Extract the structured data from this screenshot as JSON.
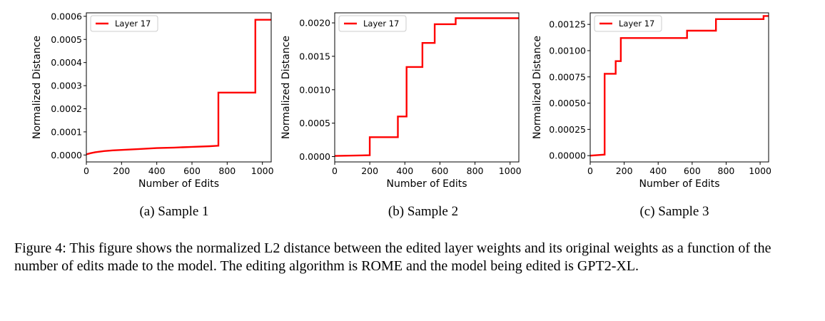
{
  "chart_data": [
    {
      "type": "line",
      "subcaption": "(a) Sample 1",
      "xlabel": "Number of Edits",
      "ylabel": "Normalized Distance",
      "xlim": [
        0,
        1050
      ],
      "ylim": [
        -3e-05,
        0.000615
      ],
      "xticks": [
        0,
        200,
        400,
        600,
        800,
        1000
      ],
      "xtick_labels": [
        "0",
        "200",
        "400",
        "600",
        "800",
        "1000"
      ],
      "yticks": [
        0,
        0.0001,
        0.0002,
        0.0003,
        0.0004,
        0.0005,
        0.0006
      ],
      "ytick_labels": [
        "0.0000",
        "0.0001",
        "0.0002",
        "0.0003",
        "0.0004",
        "0.0005",
        "0.0006"
      ],
      "legend_position": "top-left",
      "grid": false,
      "series": [
        {
          "name": "Layer 17",
          "color": "#ff0000",
          "x": [
            0,
            25,
            50,
            100,
            150,
            200,
            300,
            400,
            500,
            600,
            700,
            750,
            750,
            960,
            960,
            1050
          ],
          "y": [
            3e-06,
            8e-06,
            1.2e-05,
            1.7e-05,
            2e-05,
            2.2e-05,
            2.6e-05,
            3e-05,
            3.2e-05,
            3.5e-05,
            3.8e-05,
            4e-05,
            0.00027,
            0.00027,
            0.000585,
            0.000585
          ]
        }
      ]
    },
    {
      "type": "line",
      "subcaption": "(b) Sample 2",
      "xlabel": "Number of Edits",
      "ylabel": "Normalized Distance",
      "xlim": [
        0,
        1050
      ],
      "ylim": [
        -8e-05,
        0.00215
      ],
      "xticks": [
        0,
        200,
        400,
        600,
        800,
        1000
      ],
      "xtick_labels": [
        "0",
        "200",
        "400",
        "600",
        "800",
        "1000"
      ],
      "yticks": [
        0,
        0.0005,
        0.001,
        0.0015,
        0.002
      ],
      "ytick_labels": [
        "0.0000",
        "0.0005",
        "0.0010",
        "0.0015",
        "0.0020"
      ],
      "legend_position": "top-left",
      "grid": false,
      "series": [
        {
          "name": "Layer 17",
          "color": "#ff0000",
          "x": [
            0,
            200,
            200,
            360,
            360,
            410,
            410,
            500,
            500,
            570,
            570,
            690,
            690,
            1050
          ],
          "y": [
            1e-05,
            2e-05,
            0.00029,
            0.00029,
            0.0006,
            0.0006,
            0.00134,
            0.00134,
            0.0017,
            0.0017,
            0.00198,
            0.00198,
            0.00207,
            0.00207
          ]
        }
      ]
    },
    {
      "type": "line",
      "subcaption": "(c) Sample 3",
      "xlabel": "Number of Edits",
      "ylabel": "Normalized Distance",
      "xlim": [
        0,
        1050
      ],
      "ylim": [
        -6e-05,
        0.00136
      ],
      "xticks": [
        0,
        200,
        400,
        600,
        800,
        1000
      ],
      "xtick_labels": [
        "0",
        "200",
        "400",
        "600",
        "800",
        "1000"
      ],
      "yticks": [
        0,
        0.00025,
        0.0005,
        0.00075,
        0.001,
        0.00125
      ],
      "ytick_labels": [
        "0.00000",
        "0.00025",
        "0.00050",
        "0.00075",
        "0.00100",
        "0.00125"
      ],
      "legend_position": "top-left",
      "grid": false,
      "series": [
        {
          "name": "Layer 17",
          "color": "#ff0000",
          "x": [
            0,
            85,
            85,
            150,
            150,
            180,
            180,
            570,
            570,
            740,
            740,
            1020,
            1020,
            1050
          ],
          "y": [
            0,
            1e-05,
            0.00078,
            0.00078,
            0.0009,
            0.0009,
            0.00112,
            0.00112,
            0.00119,
            0.00119,
            0.0013,
            0.0013,
            0.00133,
            0.00133
          ]
        }
      ]
    }
  ],
  "caption": "Figure 4: This figure shows the normalized L2 distance between the edited layer weights and its original weights as a function of the number of edits made to the model. The editing algorithm is ROME and the model being edited is GPT2-XL."
}
